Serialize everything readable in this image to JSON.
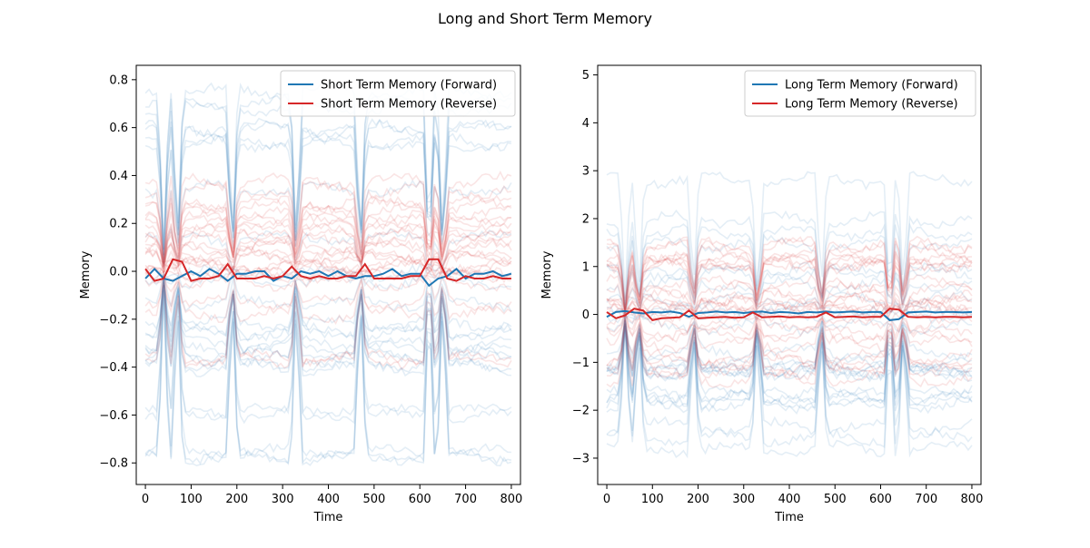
{
  "figure": {
    "title": "Long and Short Term Memory"
  },
  "chart_data": [
    {
      "type": "line",
      "title": "",
      "xlabel": "Time",
      "ylabel": "Memory",
      "xlim": [
        -20,
        820
      ],
      "ylim": [
        -0.89,
        0.86
      ],
      "xticks": [
        0,
        100,
        200,
        300,
        400,
        500,
        600,
        700,
        800
      ],
      "yticks": [
        -0.8,
        -0.6,
        -0.4,
        -0.2,
        0.0,
        0.2,
        0.4,
        0.6,
        0.8
      ],
      "ytick_labels": [
        "−0.8",
        "−0.6",
        "−0.4",
        "−0.2",
        "0.0",
        "0.2",
        "0.4",
        "0.6",
        "0.8"
      ],
      "grid": false,
      "legend": {
        "placement": "top-right"
      },
      "series": [
        {
          "name": "Short Term Memory (Forward)",
          "color": "#1f77b4",
          "x": [
            0,
            20,
            40,
            60,
            80,
            100,
            120,
            140,
            160,
            180,
            200,
            220,
            240,
            260,
            280,
            300,
            320,
            340,
            360,
            380,
            400,
            420,
            440,
            460,
            480,
            500,
            520,
            540,
            560,
            580,
            600,
            620,
            640,
            660,
            680,
            700,
            720,
            740,
            760,
            780,
            800
          ],
          "y": [
            -0.03,
            0.01,
            -0.03,
            -0.04,
            -0.02,
            0.0,
            -0.02,
            0.01,
            -0.01,
            -0.04,
            -0.01,
            -0.01,
            0.0,
            0.0,
            -0.04,
            -0.02,
            -0.03,
            0.0,
            -0.01,
            0.0,
            -0.02,
            0.0,
            -0.02,
            -0.03,
            -0.02,
            -0.02,
            -0.01,
            0.01,
            -0.02,
            -0.01,
            -0.01,
            -0.06,
            -0.03,
            -0.02,
            0.01,
            -0.03,
            -0.01,
            -0.01,
            0.0,
            -0.02,
            -0.01
          ]
        },
        {
          "name": "Short Term Memory (Reverse)",
          "color": "#d62728",
          "x": [
            0,
            20,
            40,
            60,
            80,
            100,
            120,
            140,
            160,
            180,
            200,
            220,
            240,
            260,
            280,
            300,
            320,
            340,
            360,
            380,
            400,
            420,
            440,
            460,
            480,
            500,
            520,
            540,
            560,
            580,
            600,
            620,
            640,
            660,
            680,
            700,
            720,
            740,
            760,
            780,
            800
          ],
          "y": [
            0.01,
            -0.04,
            -0.03,
            0.05,
            0.04,
            -0.04,
            -0.03,
            -0.03,
            -0.02,
            0.03,
            -0.03,
            -0.03,
            -0.03,
            -0.02,
            -0.03,
            -0.02,
            0.02,
            -0.02,
            -0.03,
            -0.02,
            -0.03,
            -0.03,
            -0.02,
            -0.02,
            0.03,
            -0.03,
            -0.03,
            -0.03,
            -0.03,
            -0.02,
            -0.02,
            0.05,
            0.05,
            -0.03,
            -0.04,
            -0.02,
            -0.03,
            -0.03,
            -0.02,
            -0.03,
            -0.03
          ]
        }
      ]
    },
    {
      "type": "line",
      "title": "",
      "xlabel": "Time",
      "ylabel": "Memory",
      "xlim": [
        -20,
        820
      ],
      "ylim": [
        -3.55,
        5.2
      ],
      "xticks": [
        0,
        100,
        200,
        300,
        400,
        500,
        600,
        700,
        800
      ],
      "yticks": [
        -3,
        -2,
        -1,
        0,
        1,
        2,
        3,
        4,
        5
      ],
      "ytick_labels": [
        "−3",
        "−2",
        "−1",
        "0",
        "1",
        "2",
        "3",
        "4",
        "5"
      ],
      "grid": false,
      "legend": {
        "placement": "top-right"
      },
      "series": [
        {
          "name": "Long Term Memory (Forward)",
          "color": "#1f77b4",
          "x": [
            0,
            20,
            40,
            60,
            80,
            100,
            120,
            140,
            160,
            180,
            200,
            220,
            240,
            260,
            280,
            300,
            320,
            340,
            360,
            380,
            400,
            420,
            440,
            460,
            480,
            500,
            520,
            540,
            560,
            580,
            600,
            620,
            640,
            660,
            680,
            700,
            720,
            740,
            760,
            780,
            800
          ],
          "y": [
            -0.05,
            0.05,
            0.07,
            0.04,
            0.02,
            0.05,
            0.04,
            0.06,
            0.03,
            -0.05,
            0.03,
            0.04,
            0.06,
            0.04,
            0.05,
            0.03,
            0.05,
            0.06,
            0.03,
            0.05,
            0.04,
            0.02,
            0.05,
            0.04,
            0.06,
            0.04,
            0.05,
            0.06,
            0.04,
            0.05,
            0.05,
            -0.12,
            -0.1,
            0.04,
            0.05,
            0.06,
            0.04,
            0.05,
            0.05,
            0.04,
            0.05
          ]
        },
        {
          "name": "Long Term Memory (Reverse)",
          "color": "#d62728",
          "x": [
            0,
            20,
            40,
            60,
            80,
            100,
            120,
            140,
            160,
            180,
            200,
            220,
            240,
            260,
            280,
            300,
            320,
            340,
            360,
            380,
            400,
            420,
            440,
            460,
            480,
            500,
            520,
            540,
            560,
            580,
            600,
            620,
            640,
            660,
            680,
            700,
            720,
            740,
            760,
            780,
            800
          ],
          "y": [
            0.05,
            -0.08,
            -0.02,
            0.12,
            0.08,
            -0.12,
            -0.08,
            -0.07,
            -0.06,
            0.08,
            -0.08,
            -0.07,
            -0.06,
            -0.05,
            -0.07,
            -0.06,
            0.04,
            -0.06,
            -0.05,
            -0.04,
            -0.06,
            -0.05,
            -0.06,
            -0.05,
            0.04,
            -0.06,
            -0.05,
            -0.04,
            -0.06,
            -0.05,
            -0.05,
            0.12,
            0.1,
            -0.05,
            -0.06,
            -0.05,
            -0.06,
            -0.05,
            -0.05,
            -0.06,
            -0.05
          ]
        }
      ]
    }
  ]
}
